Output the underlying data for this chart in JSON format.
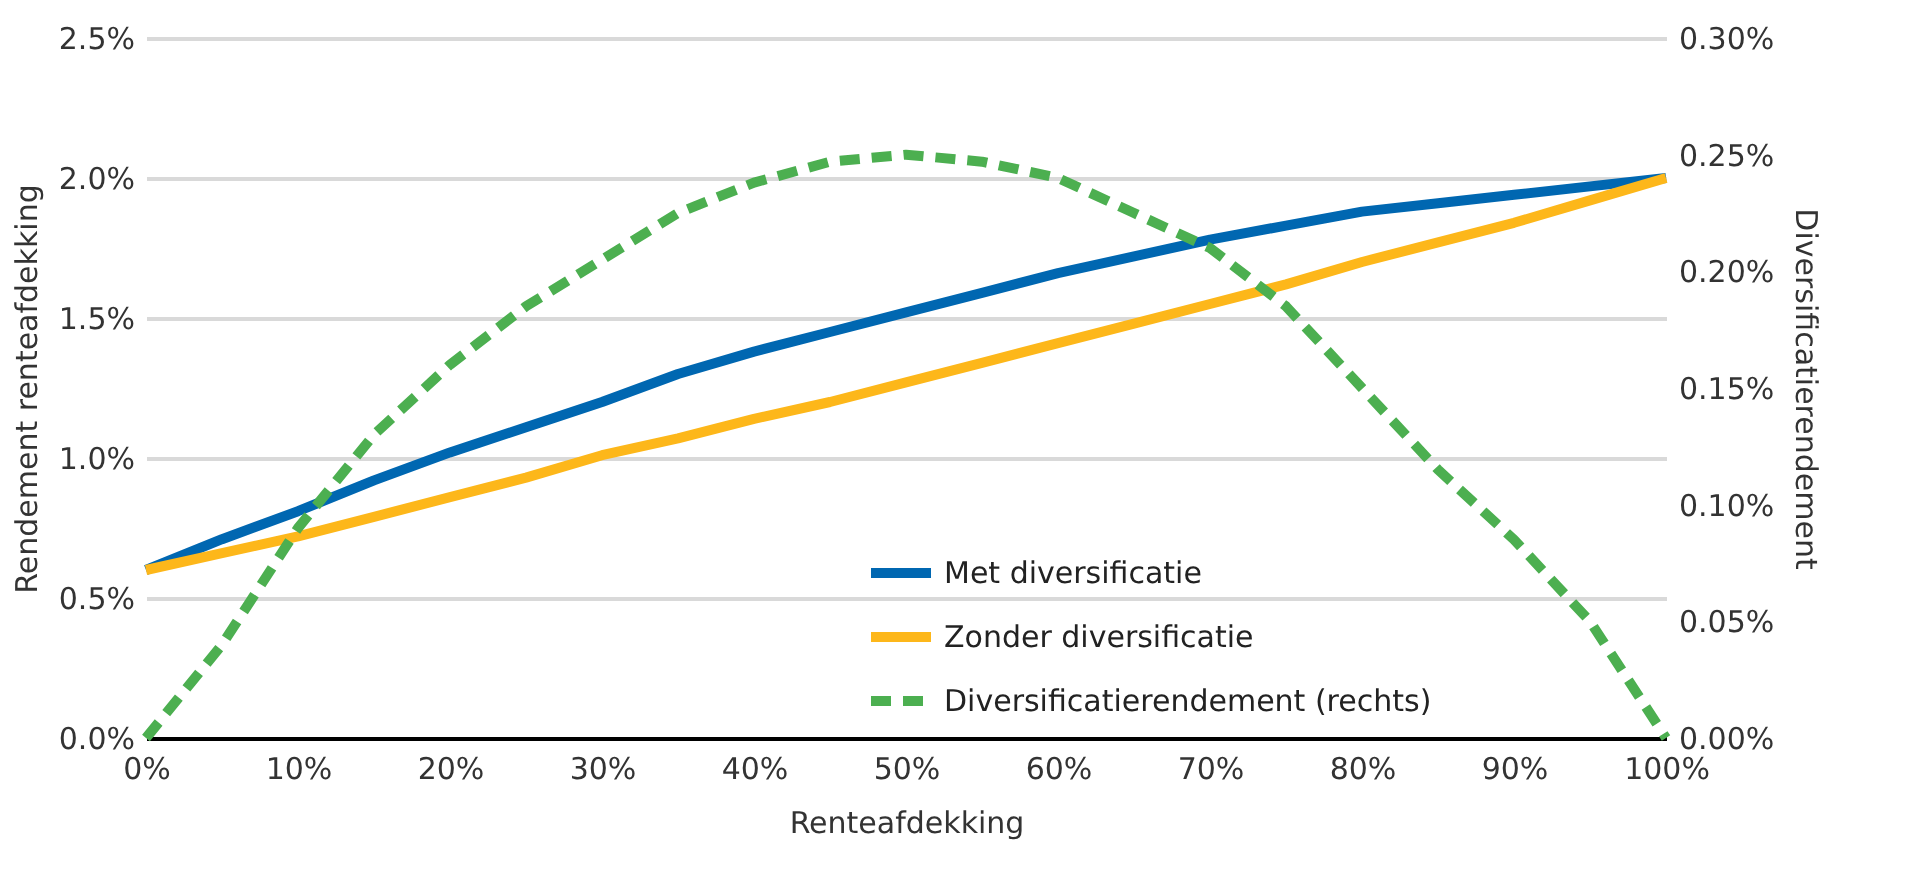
{
  "chart_data": {
    "type": "line",
    "xlabel": "Renteafdekking",
    "ylabel": "Rendement renteafdekking",
    "y2label": "Diversificatierendement",
    "x": [
      0,
      5,
      10,
      15,
      20,
      25,
      30,
      35,
      40,
      45,
      50,
      55,
      60,
      65,
      70,
      75,
      80,
      85,
      90,
      95,
      100
    ],
    "series": [
      {
        "name": "Met diversificatie",
        "color": "#0067b1",
        "line_style": "solid",
        "values": [
          0.6,
          0.71,
          0.81,
          0.92,
          1.02,
          1.11,
          1.2,
          1.3,
          1.38,
          1.45,
          1.52,
          1.59,
          1.66,
          1.72,
          1.78,
          1.83,
          1.88,
          1.91,
          1.94,
          1.97,
          2.0
        ]
      },
      {
        "name": "Zonder diversificatie",
        "color": "#fdb71a",
        "line_style": "solid",
        "values": [
          0.6,
          0.66,
          0.72,
          0.79,
          0.86,
          0.93,
          1.01,
          1.07,
          1.14,
          1.2,
          1.27,
          1.34,
          1.41,
          1.48,
          1.55,
          1.62,
          1.7,
          1.77,
          1.84,
          1.92,
          2.0
        ]
      },
      {
        "name": "Diversificatierendement (rechts)",
        "color": "#4caf50",
        "line_style": "dashed",
        "axis": "y2",
        "values": [
          0,
          0.04,
          0.09,
          0.13,
          0.16,
          0.185,
          0.205,
          0.225,
          0.238,
          0.247,
          0.25,
          0.247,
          0.24,
          0.225,
          0.21,
          0.185,
          0.15,
          0.115,
          0.085,
          0.05,
          0
        ]
      }
    ],
    "xlim": [
      0,
      100
    ],
    "xticks": [
      {
        "value": 0,
        "label": "0%"
      },
      {
        "value": 10,
        "label": "10%"
      },
      {
        "value": 20,
        "label": "20%"
      },
      {
        "value": 30,
        "label": "30%"
      },
      {
        "value": 40,
        "label": "40%"
      },
      {
        "value": 50,
        "label": "50%"
      },
      {
        "value": 60,
        "label": "60%"
      },
      {
        "value": 70,
        "label": "70%"
      },
      {
        "value": 80,
        "label": "80%"
      },
      {
        "value": 90,
        "label": "90%"
      },
      {
        "value": 100,
        "label": "100%"
      }
    ],
    "ylim": [
      0,
      2.5
    ],
    "yticks": [
      {
        "value": 0,
        "label": "0.0%"
      },
      {
        "value": 0.5,
        "label": "0.5%"
      },
      {
        "value": 1,
        "label": "1.0%"
      },
      {
        "value": 1.5,
        "label": "1.5%"
      },
      {
        "value": 2,
        "label": "2.0%"
      },
      {
        "value": 2.5,
        "label": "2.5%"
      }
    ],
    "y2lim": [
      0,
      0.3
    ],
    "y2ticks": [
      {
        "value": 0,
        "label": "0.00%"
      },
      {
        "value": 0.05,
        "label": "0.05%"
      },
      {
        "value": 0.1,
        "label": "0.10%"
      },
      {
        "value": 0.15,
        "label": "0.15%"
      },
      {
        "value": 0.2,
        "label": "0.20%"
      },
      {
        "value": 0.25,
        "label": "0.25%"
      },
      {
        "value": 0.3,
        "label": "0.30%"
      }
    ],
    "grid": "y",
    "legend": "bottom",
    "marker": "none"
  }
}
